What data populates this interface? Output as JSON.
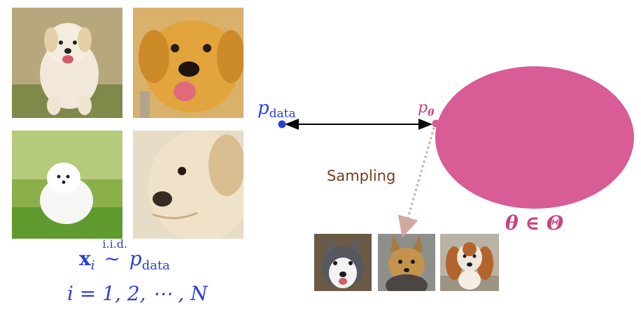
{
  "dataset": {
    "sample_formula": {
      "x": "x",
      "i": "i",
      "relation": "∼",
      "iid": "i.i.d.",
      "p": "p",
      "data": "data"
    },
    "index_formula": "i = 1, 2, ⋯ , N"
  },
  "model": {
    "p_data": {
      "p": "p",
      "sub": "data"
    },
    "p_theta": {
      "p": "p",
      "sub": "θ"
    },
    "parameter_space": "θ ∈ Θ",
    "sampling_label": "Sampling"
  },
  "colors": {
    "math_blue": "#2b3fd6",
    "model_pink": "#d85c95",
    "label_pink": "#c9437e",
    "sampling_brown": "#7a3b1f",
    "arrow_black": "#000000",
    "dotted_arrow": "#d2a99e"
  },
  "images": {
    "training": [
      "white-puppy-running",
      "golden-puppy-closeup",
      "white-fluffy-puppy",
      "cream-puppy-face"
    ],
    "generated": [
      "husky",
      "yorkshire-terrier",
      "spaniel"
    ]
  }
}
